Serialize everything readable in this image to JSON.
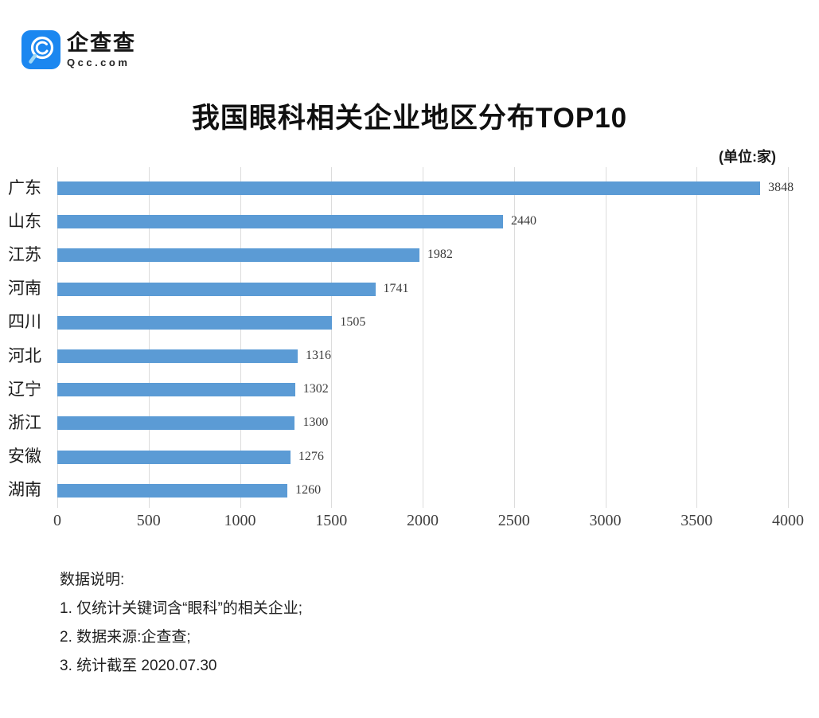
{
  "header": {
    "logo_name": "企查查",
    "logo_sub": "Qcc.com",
    "logo_color": "#1b87f0"
  },
  "title": "我国眼科相关企业地区分布TOP10",
  "unit_label": "(单位:家)",
  "chart_data": {
    "type": "bar",
    "orientation": "horizontal",
    "title": "我国眼科相关企业地区分布TOP10",
    "unit": "(单位:家)",
    "categories": [
      "广东",
      "山东",
      "江苏",
      "河南",
      "四川",
      "河北",
      "辽宁",
      "浙江",
      "安徽",
      "湖南"
    ],
    "values": [
      3848,
      2440,
      1982,
      1741,
      1505,
      1316,
      1302,
      1300,
      1276,
      1260
    ],
    "xlabel": "",
    "ylabel": "",
    "xlim": [
      0,
      4000
    ],
    "x_ticks": [
      0,
      500,
      1000,
      1500,
      2000,
      2500,
      3000,
      3500,
      4000
    ],
    "grid": true,
    "bar_color": "#5b9bd5",
    "value_labels_shown": true
  },
  "notes": {
    "heading": "数据说明:",
    "items": [
      "1. 仅统计关键词含“眼科”的相关企业;",
      "2. 数据来源:企查查;",
      "3. 统计截至 2020.07.30"
    ]
  }
}
